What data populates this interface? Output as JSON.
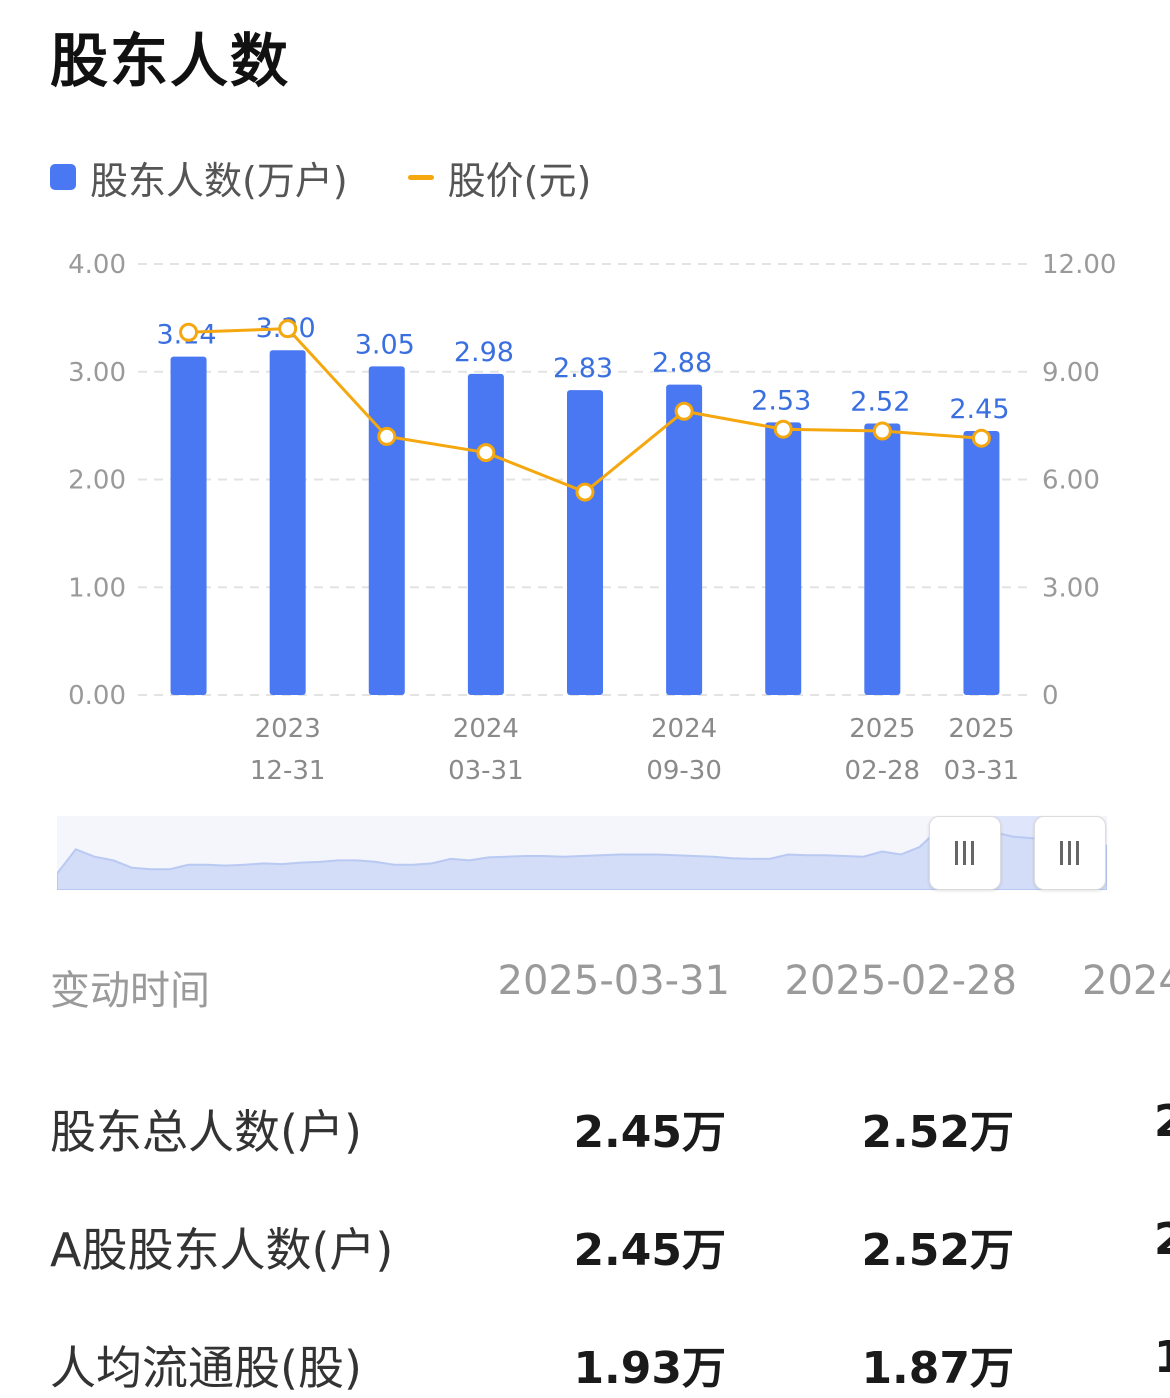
{
  "title": "股东人数",
  "legend": {
    "bar_label": "股东人数(万户)",
    "line_label": "股价(元)"
  },
  "colors": {
    "bar": "#4a78f3",
    "line": "#f5a70f",
    "bar_label": "#3a6fe0"
  },
  "chart_data": {
    "type": "bar",
    "categories": [
      "",
      "2023-12-31",
      "",
      "2024-03-31",
      "",
      "2024-09-30",
      "",
      "2025-02-28",
      "2025-03-31"
    ],
    "x_tick_labels": [
      {
        "year": "",
        "md": ""
      },
      {
        "year": "2023",
        "md": "12-31"
      },
      {
        "year": "",
        "md": ""
      },
      {
        "year": "2024",
        "md": "03-31"
      },
      {
        "year": "",
        "md": ""
      },
      {
        "year": "2024",
        "md": "09-30"
      },
      {
        "year": "",
        "md": ""
      },
      {
        "year": "2025",
        "md": "02-28"
      },
      {
        "year": "2025",
        "md": "03-31"
      }
    ],
    "series": [
      {
        "name": "股东人数(万户)",
        "type": "bar",
        "axis": "left",
        "values": [
          3.14,
          3.2,
          3.05,
          2.98,
          2.83,
          2.88,
          2.53,
          2.52,
          2.45
        ]
      },
      {
        "name": "股价(元)",
        "type": "line",
        "axis": "right",
        "values": [
          10.1,
          10.2,
          7.2,
          6.75,
          5.65,
          7.9,
          7.4,
          7.35,
          7.15
        ]
      }
    ],
    "bar_value_labels": [
      "3.14",
      "3.20",
      "3.05",
      "2.98",
      "2.83",
      "2.88",
      "2.53",
      "2.52",
      "2.45"
    ],
    "y_left": {
      "ticks": [
        "0.00",
        "1.00",
        "2.00",
        "3.00",
        "4.00"
      ],
      "range": [
        0,
        4
      ]
    },
    "y_right": {
      "ticks": [
        "0",
        "3.00",
        "6.00",
        "9.00",
        "12.00"
      ],
      "range": [
        0,
        12
      ]
    },
    "grid": true,
    "legend_position": "top-left"
  },
  "navigator": {
    "series": [
      0.22,
      0.55,
      0.45,
      0.4,
      0.3,
      0.28,
      0.28,
      0.34,
      0.34,
      0.33,
      0.34,
      0.36,
      0.35,
      0.37,
      0.38,
      0.4,
      0.4,
      0.38,
      0.34,
      0.34,
      0.36,
      0.42,
      0.4,
      0.44,
      0.45,
      0.46,
      0.46,
      0.45,
      0.46,
      0.47,
      0.48,
      0.48,
      0.48,
      0.47,
      0.46,
      0.45,
      0.43,
      0.42,
      0.42,
      0.48,
      0.47,
      0.47,
      0.46,
      0.45,
      0.52,
      0.48,
      0.58,
      0.82,
      0.74,
      0.68,
      0.78,
      0.72,
      0.7,
      0.66,
      0.62,
      0.6,
      0.6
    ],
    "handle_icon": "grip-icon"
  },
  "table": {
    "header_label": "变动时间",
    "columns": [
      "2025-03-31",
      "2025-02-28",
      "2024"
    ],
    "rows": [
      {
        "label": "股东总人数(户)",
        "values": [
          "2.45万",
          "2.52万",
          "2"
        ]
      },
      {
        "label": "A股股东人数(户)",
        "values": [
          "2.45万",
          "2.52万",
          "2"
        ]
      },
      {
        "label": "人均流通股(股)",
        "values": [
          "1.93万",
          "1.87万",
          "1"
        ]
      }
    ]
  }
}
